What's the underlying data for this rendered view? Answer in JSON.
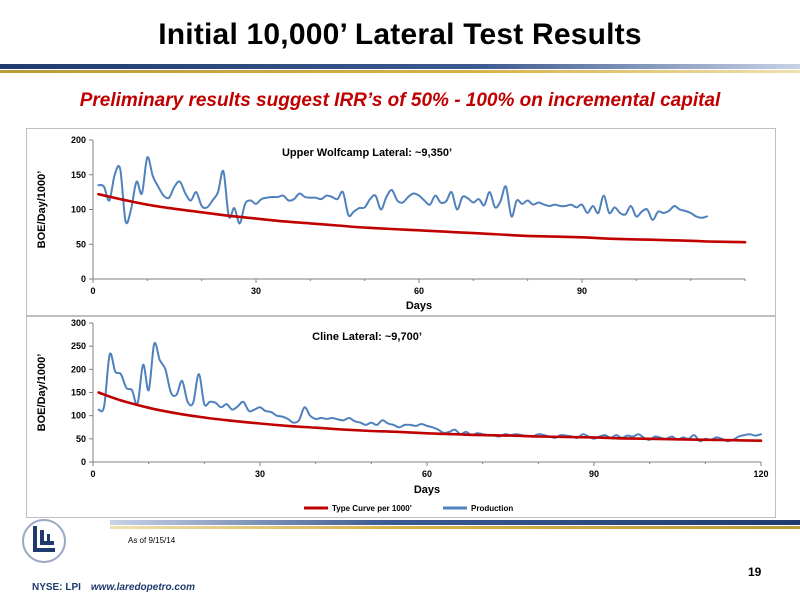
{
  "slide": {
    "title": "Initial 10,000’ Lateral Test Results",
    "subtitle": "Preliminary results suggest IRR’s of 50% - 100% on incremental capital",
    "as_of": "As of 9/15/14",
    "page_number": "19",
    "ticker": "NYSE: LPI",
    "website": "www.laredopetro.com"
  },
  "colors": {
    "production": "#4f81bd",
    "type_curve": "#c00000",
    "band_navy": "#1f3a6e",
    "band_gold": "#d8b24a",
    "subtitle": "#c00000"
  },
  "legend": {
    "type_curve": "Type Curve per 1000’",
    "production": "Production"
  },
  "chart_data": [
    {
      "type": "line",
      "annotation": "Upper Wolfcamp Lateral: ~9,350’",
      "xlabel": "Days",
      "ylabel": "BOE/Day/1000’",
      "xlim": [
        0,
        120
      ],
      "ylim": [
        0,
        200
      ],
      "xticks": [
        0,
        30,
        60,
        90
      ],
      "yticks": [
        0,
        50,
        100,
        150,
        200
      ],
      "series": [
        {
          "name": "Production",
          "x": [
            1,
            2,
            3,
            4,
            5,
            6,
            7,
            8,
            9,
            10,
            11,
            12,
            13,
            14,
            15,
            16,
            17,
            18,
            19,
            20,
            21,
            22,
            23,
            24,
            25,
            26,
            27,
            28,
            29,
            30,
            31,
            32,
            33,
            34,
            35,
            36,
            37,
            38,
            39,
            40,
            41,
            42,
            43,
            44,
            45,
            46,
            47,
            48,
            49,
            50,
            51,
            52,
            53,
            54,
            55,
            56,
            57,
            58,
            59,
            60,
            61,
            62,
            63,
            64,
            65,
            66,
            67,
            68,
            69,
            70,
            71,
            72,
            73,
            74,
            75,
            76,
            77,
            78,
            79,
            80,
            81,
            82,
            83,
            84,
            85,
            86,
            87,
            88,
            89,
            90,
            91,
            92,
            93,
            94,
            95,
            96,
            97,
            98,
            99,
            100,
            101,
            102,
            103,
            104,
            105,
            106,
            107,
            108,
            109,
            110,
            111,
            112,
            113
          ],
          "values": [
            135,
            133,
            113,
            150,
            158,
            83,
            100,
            140,
            123,
            175,
            148,
            133,
            120,
            117,
            133,
            140,
            123,
            113,
            125,
            105,
            103,
            113,
            125,
            155,
            90,
            102,
            80,
            108,
            113,
            108,
            115,
            117,
            118,
            118,
            120,
            113,
            115,
            123,
            118,
            117,
            117,
            115,
            120,
            118,
            115,
            125,
            92,
            97,
            102,
            103,
            115,
            120,
            100,
            118,
            128,
            113,
            110,
            118,
            123,
            120,
            113,
            107,
            120,
            110,
            112,
            125,
            100,
            118,
            116,
            110,
            115,
            106,
            125,
            103,
            112,
            133,
            90,
            113,
            108,
            113,
            107,
            110,
            107,
            105,
            107,
            105,
            105,
            107,
            103,
            107,
            95,
            105,
            95,
            120,
            95,
            103,
            95,
            93,
            105,
            90,
            97,
            100,
            85,
            97,
            95,
            98,
            105,
            100,
            98,
            95,
            90,
            88,
            90
          ]
        },
        {
          "name": "Type Curve per 1000’",
          "x": [
            1,
            5,
            10,
            15,
            20,
            25,
            30,
            35,
            40,
            45,
            50,
            55,
            60,
            65,
            70,
            75,
            80,
            85,
            90,
            95,
            100,
            105,
            110,
            113,
            120
          ],
          "values": [
            122,
            115,
            107,
            101,
            96,
            91,
            87,
            83,
            80,
            77,
            74,
            72,
            70,
            68,
            66,
            64,
            62,
            61,
            60,
            58,
            57,
            56,
            55,
            54,
            53
          ]
        }
      ]
    },
    {
      "type": "line",
      "annotation": "Cline Lateral: ~9,700’",
      "xlabel": "Days",
      "ylabel": "BOE/Day/1000’",
      "xlim": [
        0,
        120
      ],
      "ylim": [
        0,
        300
      ],
      "xticks": [
        0,
        30,
        60,
        90,
        120
      ],
      "yticks": [
        0,
        50,
        100,
        150,
        200,
        250,
        300
      ],
      "series": [
        {
          "name": "Production",
          "x": [
            1,
            2,
            3,
            4,
            5,
            6,
            7,
            8,
            9,
            10,
            11,
            12,
            13,
            14,
            15,
            16,
            17,
            18,
            19,
            20,
            21,
            22,
            23,
            24,
            25,
            26,
            27,
            28,
            29,
            30,
            31,
            32,
            33,
            34,
            35,
            36,
            37,
            38,
            39,
            40,
            41,
            42,
            43,
            44,
            45,
            46,
            47,
            48,
            49,
            50,
            51,
            52,
            53,
            54,
            55,
            56,
            57,
            58,
            59,
            60,
            61,
            62,
            63,
            64,
            65,
            66,
            67,
            68,
            69,
            70,
            71,
            72,
            73,
            74,
            75,
            76,
            77,
            78,
            79,
            80,
            81,
            82,
            83,
            84,
            85,
            86,
            87,
            88,
            89,
            90,
            91,
            92,
            93,
            94,
            95,
            96,
            97,
            98,
            99,
            100,
            101,
            102,
            103,
            104,
            105,
            106,
            107,
            108,
            109,
            110,
            111,
            112,
            113,
            114,
            115,
            116,
            117,
            118,
            119,
            120
          ],
          "values": [
            113,
            120,
            232,
            195,
            190,
            160,
            155,
            125,
            210,
            155,
            255,
            220,
            200,
            150,
            145,
            175,
            130,
            128,
            190,
            125,
            130,
            128,
            118,
            125,
            113,
            120,
            130,
            110,
            113,
            118,
            110,
            108,
            100,
            98,
            93,
            85,
            90,
            118,
            100,
            93,
            95,
            93,
            95,
            92,
            90,
            95,
            88,
            85,
            80,
            85,
            80,
            90,
            83,
            80,
            75,
            80,
            80,
            78,
            82,
            78,
            75,
            70,
            63,
            65,
            70,
            60,
            65,
            58,
            62,
            60,
            58,
            57,
            55,
            60,
            58,
            60,
            58,
            56,
            55,
            60,
            58,
            55,
            52,
            58,
            57,
            55,
            52,
            60,
            55,
            50,
            55,
            58,
            52,
            58,
            52,
            57,
            55,
            60,
            52,
            48,
            55,
            52,
            50,
            55,
            48,
            53,
            50,
            58,
            45,
            50,
            48,
            53,
            50,
            45,
            48,
            55,
            58,
            60,
            57,
            60
          ]
        },
        {
          "name": "Type Curve per 1000’",
          "x": [
            1,
            5,
            10,
            15,
            20,
            25,
            30,
            35,
            40,
            45,
            50,
            55,
            60,
            65,
            70,
            75,
            80,
            85,
            90,
            95,
            100,
            105,
            110,
            115,
            120
          ],
          "values": [
            150,
            133,
            117,
            105,
            96,
            89,
            83,
            78,
            74,
            70,
            67,
            65,
            62,
            60,
            58,
            57,
            55,
            54,
            53,
            51,
            50,
            49,
            48,
            47,
            46
          ]
        }
      ]
    }
  ]
}
